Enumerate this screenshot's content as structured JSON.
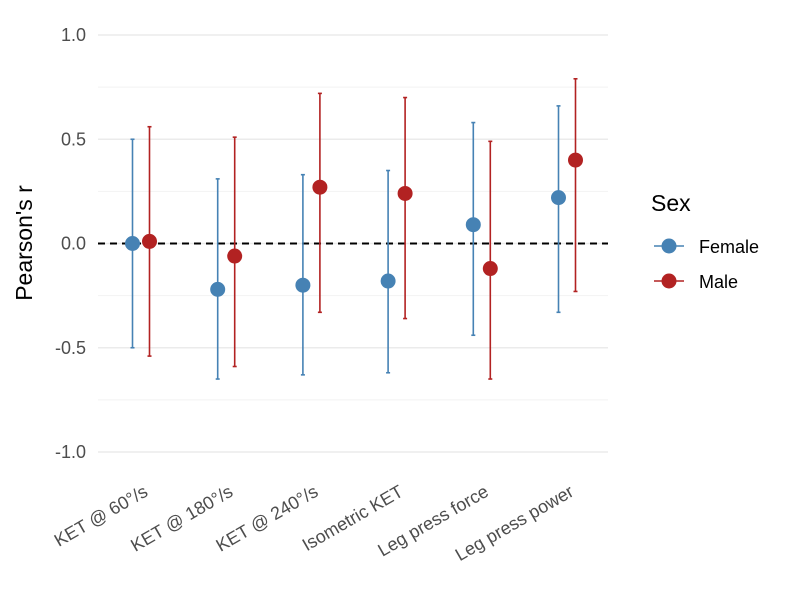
{
  "chart_data": {
    "type": "errorbar",
    "title": "",
    "xlabel": "",
    "ylabel": "Pearson's r",
    "ylim": [
      -1.0,
      1.0
    ],
    "yticks": [
      {
        "value": -1.0,
        "label": "-1.0"
      },
      {
        "value": -0.5,
        "label": "-0.5"
      },
      {
        "value": 0.0,
        "label": "0.0"
      },
      {
        "value": 0.5,
        "label": "0.5"
      },
      {
        "value": 1.0,
        "label": "1.0"
      }
    ],
    "reference_line": 0.0,
    "grid": true,
    "categories": [
      "KET @ 60°/s",
      "KET @ 180°/s",
      "KET @ 240°/s",
      "Isometric KET",
      "Leg press force",
      "Leg press power"
    ],
    "legend": {
      "title": "Sex",
      "position": "right"
    },
    "series": [
      {
        "name": "Female",
        "color": "#4682b4",
        "values": [
          0.0,
          -0.22,
          -0.2,
          -0.18,
          0.09,
          0.22
        ],
        "lower": [
          -0.5,
          -0.65,
          -0.63,
          -0.62,
          -0.44,
          -0.33
        ],
        "upper": [
          0.5,
          0.31,
          0.33,
          0.35,
          0.58,
          0.66
        ]
      },
      {
        "name": "Male",
        "color": "#b22222",
        "values": [
          0.01,
          -0.06,
          0.27,
          0.24,
          -0.12,
          0.4
        ],
        "lower": [
          -0.54,
          -0.59,
          -0.33,
          -0.36,
          -0.65,
          -0.23
        ],
        "upper": [
          0.56,
          0.51,
          0.72,
          0.7,
          0.49,
          0.79
        ]
      }
    ]
  }
}
